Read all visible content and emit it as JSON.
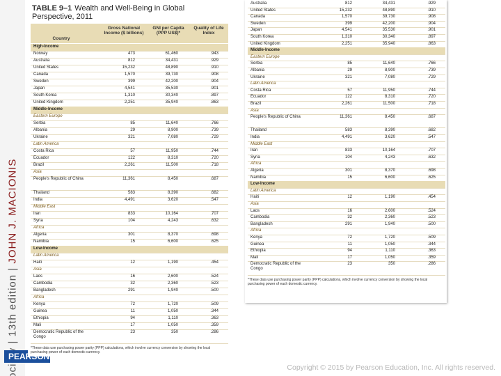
{
  "sidebar": {
    "series_name": "society",
    "edition": "13th edition",
    "author": "JOHN J. MACIONIS"
  },
  "logo": "PEARSON",
  "table": {
    "label": "TABLE 9–1",
    "title": "Wealth and Well-Being in Global Perspective, 2011",
    "headers": [
      "Country",
      "Gross National Income ($ billions)",
      "GNI per Capita (PPP US$)*",
      "Quality of Life Index"
    ],
    "rows": [
      {
        "group": "High-Income"
      },
      {
        "cells": [
          "Norway",
          "473",
          "61,460",
          ".943"
        ]
      },
      {
        "cells": [
          "Australia",
          "812",
          "34,431",
          ".929"
        ]
      },
      {
        "cells": [
          "United States",
          "15,232",
          "48,890",
          ".910"
        ]
      },
      {
        "cells": [
          "Canada",
          "1,570",
          "39,730",
          ".908"
        ]
      },
      {
        "cells": [
          "Sweden",
          "399",
          "42,200",
          ".904"
        ]
      },
      {
        "cells": [
          "Japan",
          "4,541",
          "35,530",
          ".901"
        ]
      },
      {
        "cells": [
          "South Korea",
          "1,310",
          "30,340",
          ".897"
        ]
      },
      {
        "cells": [
          "United Kingdom",
          "2,251",
          "35,940",
          ".863"
        ]
      },
      {
        "group": "Middle-Income"
      },
      {
        "region": "Eastern Europe"
      },
      {
        "cells": [
          "Serbia",
          "85",
          "11,640",
          ".766"
        ]
      },
      {
        "cells": [
          "Albania",
          "29",
          "8,900",
          ".739"
        ]
      },
      {
        "cells": [
          "Ukraine",
          "321",
          "7,080",
          ".729"
        ]
      },
      {
        "region": "Latin America"
      },
      {
        "cells": [
          "Costa Rica",
          "57",
          "11,950",
          ".744"
        ]
      },
      {
        "cells": [
          "Ecuador",
          "122",
          "8,310",
          ".720"
        ]
      },
      {
        "cells": [
          "Brazil",
          "2,261",
          "11,500",
          ".718"
        ]
      },
      {
        "region": "Asia"
      },
      {
        "cells": [
          "People's Republic of China",
          "11,361",
          "8,450",
          ".687"
        ]
      },
      {
        "cells": [
          "Thailand",
          "583",
          "8,390",
          ".682"
        ]
      },
      {
        "cells": [
          "India",
          "4,491",
          "3,620",
          ".547"
        ]
      },
      {
        "region": "Middle East"
      },
      {
        "cells": [
          "Iran",
          "833",
          "10,164",
          ".707"
        ]
      },
      {
        "cells": [
          "Syria",
          "104",
          "4,243",
          ".632"
        ]
      },
      {
        "region": "Africa"
      },
      {
        "cells": [
          "Algeria",
          "301",
          "8,370",
          ".698"
        ]
      },
      {
        "cells": [
          "Namibia",
          "15",
          "6,600",
          ".625"
        ]
      },
      {
        "group": "Low-Income"
      },
      {
        "region": "Latin America"
      },
      {
        "cells": [
          "Haiti",
          "12",
          "1,190",
          ".454"
        ]
      },
      {
        "region": "Asia"
      },
      {
        "cells": [
          "Laos",
          "16",
          "2,600",
          ".524"
        ]
      },
      {
        "cells": [
          "Cambodia",
          "32",
          "2,360",
          ".523"
        ]
      },
      {
        "cells": [
          "Bangladesh",
          "291",
          "1,940",
          ".500"
        ]
      },
      {
        "region": "Africa"
      },
      {
        "cells": [
          "Kenya",
          "72",
          "1,720",
          ".509"
        ]
      },
      {
        "cells": [
          "Guinea",
          "11",
          "1,050",
          ".344"
        ]
      },
      {
        "cells": [
          "Ethiopia",
          "94",
          "1,110",
          ".363"
        ]
      },
      {
        "cells": [
          "Mali",
          "17",
          "1,050",
          ".359"
        ]
      },
      {
        "cells": [
          "Democratic Republic of the Congo",
          "23",
          "350",
          ".286"
        ]
      }
    ],
    "footnote": "*These data use purchasing power parity (PPP) calculations, which involve currency conversion by showing the local purchasing power of each domestic currency."
  },
  "copyright": "Copyright © 2015 by Pearson Education, Inc. All rights reserved."
}
